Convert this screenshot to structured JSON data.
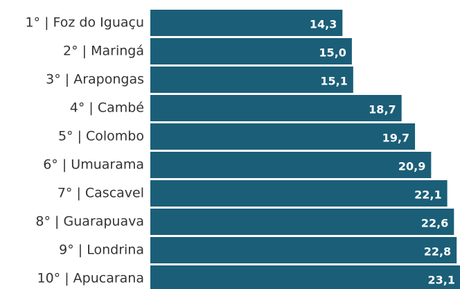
{
  "chart_data": {
    "type": "bar",
    "orientation": "horizontal",
    "categories": [
      "1° | Foz do Iguaçu",
      "2° | Maringá",
      "3° | Arapongas",
      "4° | Cambé",
      "5° | Colombo",
      "6° | Umuarama",
      "7° | Cascavel",
      "8° | Guarapuava",
      "9° | Londrina",
      "10° | Apucarana"
    ],
    "values": [
      14.3,
      15.0,
      15.1,
      18.7,
      19.7,
      20.9,
      22.1,
      22.6,
      22.8,
      23.1
    ],
    "value_labels": [
      "14,3",
      "15,0",
      "15,1",
      "18,7",
      "19,7",
      "20,9",
      "22,1",
      "22,6",
      "22,8",
      "23,1"
    ],
    "color": "#1b5e78"
  }
}
